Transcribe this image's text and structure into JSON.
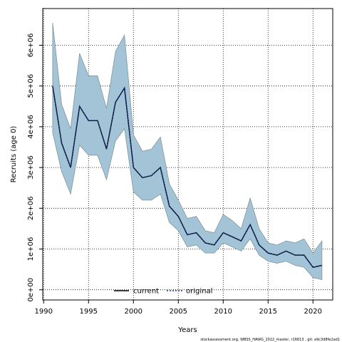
{
  "chart_data": {
    "type": "area",
    "xlabel": "Years",
    "ylabel": "Recruits (age 0)",
    "xlim": [
      1989.9,
      2022.2
    ],
    "ylim": [
      -250000,
      6900000
    ],
    "x_ticks": [
      1990,
      1995,
      2000,
      2005,
      2010,
      2015,
      2020
    ],
    "x_tick_labels": [
      "1990",
      "1995",
      "2000",
      "2005",
      "2010",
      "2015",
      "2020"
    ],
    "y_ticks": [
      0,
      1000000,
      2000000,
      3000000,
      4000000,
      5000000,
      6000000
    ],
    "y_tick_labels": [
      "0e+00",
      "1e+06",
      "2e+06",
      "3e+06",
      "4e+06",
      "5e+06",
      "6e+06"
    ],
    "grid": true,
    "legend_position": "bottom",
    "legend": [
      {
        "label": "current",
        "style": "solid",
        "color": "#000000"
      },
      {
        "label": "original",
        "style": "dotted",
        "color": "#1a3a8c"
      }
    ],
    "x": [
      1991,
      1992,
      1993,
      1994,
      1995,
      1996,
      1997,
      1998,
      1999,
      2000,
      2001,
      2002,
      2003,
      2004,
      2005,
      2006,
      2007,
      2008,
      2009,
      2010,
      2011,
      2012,
      2013,
      2014,
      2015,
      2016,
      2017,
      2018,
      2019,
      2020,
      2021
    ],
    "series": [
      {
        "name": "current",
        "values": [
          5000000,
          3600000,
          3000000,
          4500000,
          4150000,
          4150000,
          3450000,
          4600000,
          4950000,
          3000000,
          2750000,
          2800000,
          3000000,
          2050000,
          1800000,
          1350000,
          1400000,
          1150000,
          1100000,
          1400000,
          1300000,
          1200000,
          1600000,
          1100000,
          900000,
          850000,
          950000,
          850000,
          850000,
          550000,
          600000
        ],
        "lower": [
          3850000,
          2900000,
          2350000,
          3550000,
          3300000,
          3300000,
          2700000,
          3650000,
          3950000,
          2400000,
          2200000,
          2200000,
          2350000,
          1650000,
          1450000,
          1050000,
          1100000,
          900000,
          900000,
          1150000,
          1050000,
          950000,
          1250000,
          850000,
          700000,
          650000,
          700000,
          600000,
          550000,
          300000,
          250000
        ],
        "upper": [
          6550000,
          4550000,
          3950000,
          5800000,
          5250000,
          5250000,
          4450000,
          5850000,
          6250000,
          3800000,
          3400000,
          3450000,
          3750000,
          2600000,
          2200000,
          1750000,
          1800000,
          1450000,
          1400000,
          1850000,
          1700000,
          1500000,
          2250000,
          1500000,
          1150000,
          1100000,
          1200000,
          1150000,
          1250000,
          900000,
          1200000
        ]
      },
      {
        "name": "original",
        "values": [
          5000000,
          3600000,
          3000000,
          4500000,
          4150000,
          4150000,
          3450000,
          4600000,
          4950000,
          3000000,
          2750000,
          2800000,
          3000000,
          2050000,
          1800000,
          1350000,
          1400000,
          1150000,
          1100000,
          1400000,
          1300000,
          1200000,
          1600000,
          1100000,
          900000,
          850000,
          950000,
          850000,
          850000,
          550000,
          600000
        ]
      }
    ],
    "band_color": "#a2c4d6",
    "band_edge_color": "#7a8c96",
    "footnote": "stockassessment.org, WBSS_HAWG_2022_master, r16613 , git: a9c3d8fe2ad1"
  }
}
